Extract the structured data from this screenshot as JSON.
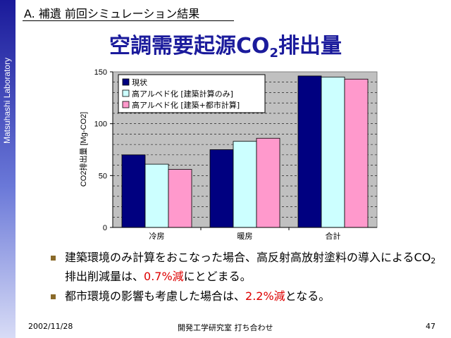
{
  "sidebar": {
    "text": "Matsuhashi Laboratory"
  },
  "header": {
    "section_title": "A. 補遺  前回シミュレーション結果",
    "title_main": "空調需要起源CO",
    "title_sub": "2",
    "title_tail": "排出量"
  },
  "chart_data": {
    "type": "bar",
    "categories": [
      "冷房",
      "暖房",
      "合計"
    ],
    "series": [
      {
        "name": "現状",
        "values": [
          70,
          75,
          146
        ]
      },
      {
        "name": "高アルベド化 [建築計算のみ]",
        "values": [
          61,
          83,
          145
        ]
      },
      {
        "name": "高アルベド化 [建築+都市計算]",
        "values": [
          56,
          86,
          143
        ]
      }
    ],
    "ylabel": "CO2排出量 [Mg-CO2]",
    "ylim": [
      0,
      150
    ],
    "yticks": [
      0,
      50,
      100,
      150
    ],
    "grid": true,
    "legend": "top-left",
    "colors": [
      "#000080",
      "#ccffff",
      "#ff99cc"
    ],
    "plot_bg": "#c0c0c0"
  },
  "bullets": [
    {
      "t1": "建築環境のみ計算をおこなった場合、高反射高放射塗料の導入によるCO",
      "t1_sub": "2",
      "t1_tail": "排出削減量は、",
      "hl": "0.7%減",
      "tail": "にとどまる。"
    },
    {
      "t1": "都市環境の影響も考慮した場合は、",
      "hl": "2.2%減",
      "tail": "となる。"
    }
  ],
  "footer": {
    "date": "2002/11/28",
    "meeting": "開発工学研究室 打ち合わせ",
    "page": "47"
  }
}
